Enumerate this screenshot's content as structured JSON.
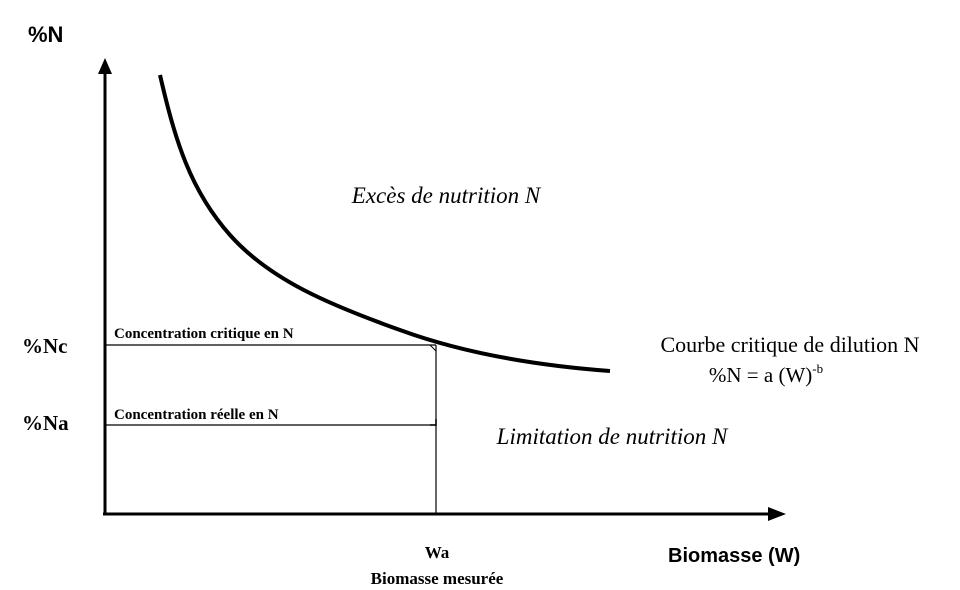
{
  "y_axis": {
    "label": "%N"
  },
  "x_axis": {
    "label": "Biomasse (W)"
  },
  "levels": {
    "nc_label": "%Nc",
    "na_label": "%Na",
    "critical_line_text": "Concentration critique en N",
    "actual_line_text": "Concentration réelle en N"
  },
  "marker": {
    "label": "Wa",
    "sublabel": "Biomasse mesurée"
  },
  "regions": {
    "excess": "Excès de nutrition N",
    "limitation": "Limitation de nutrition N"
  },
  "curve": {
    "name": "Courbe critique de dilution N",
    "equation_main": "%N = a (W)",
    "equation_exponent": "-b"
  }
}
